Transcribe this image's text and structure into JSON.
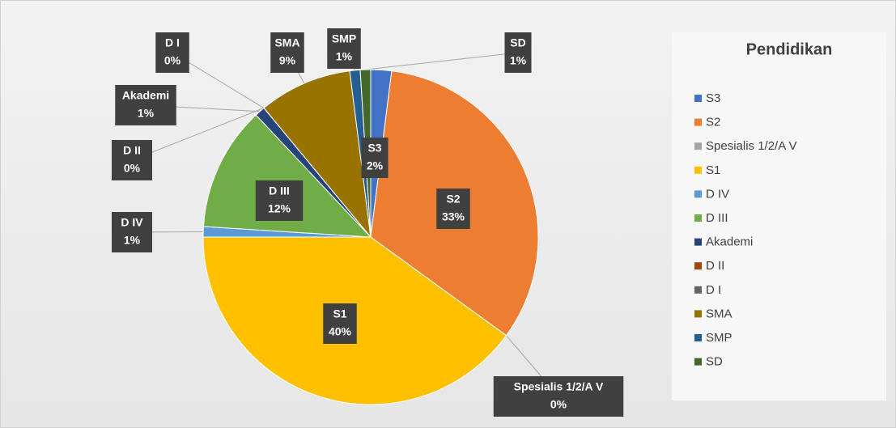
{
  "chart_data": {
    "type": "pie",
    "title": "Pendidikan",
    "categories": [
      "S3",
      "S2",
      "Spesialis 1/2/A V",
      "S1",
      "D IV",
      "D III",
      "Akademi",
      "D II",
      "D I",
      "SMA",
      "SMP",
      "SD"
    ],
    "values": [
      2,
      33,
      0,
      40,
      1,
      12,
      1,
      0,
      0,
      9,
      1,
      1
    ],
    "value_labels": [
      "2%",
      "33%",
      "0%",
      "40%",
      "1%",
      "12%",
      "1%",
      "0%",
      "0%",
      "9%",
      "1%",
      "1%"
    ],
    "colors": [
      "#4472c4",
      "#ed7d31",
      "#a5a5a5",
      "#ffc000",
      "#5b9bd5",
      "#70ad47",
      "#264478",
      "#9e480e",
      "#636363",
      "#997300",
      "#255e91",
      "#43682b"
    ],
    "legend": "right"
  }
}
